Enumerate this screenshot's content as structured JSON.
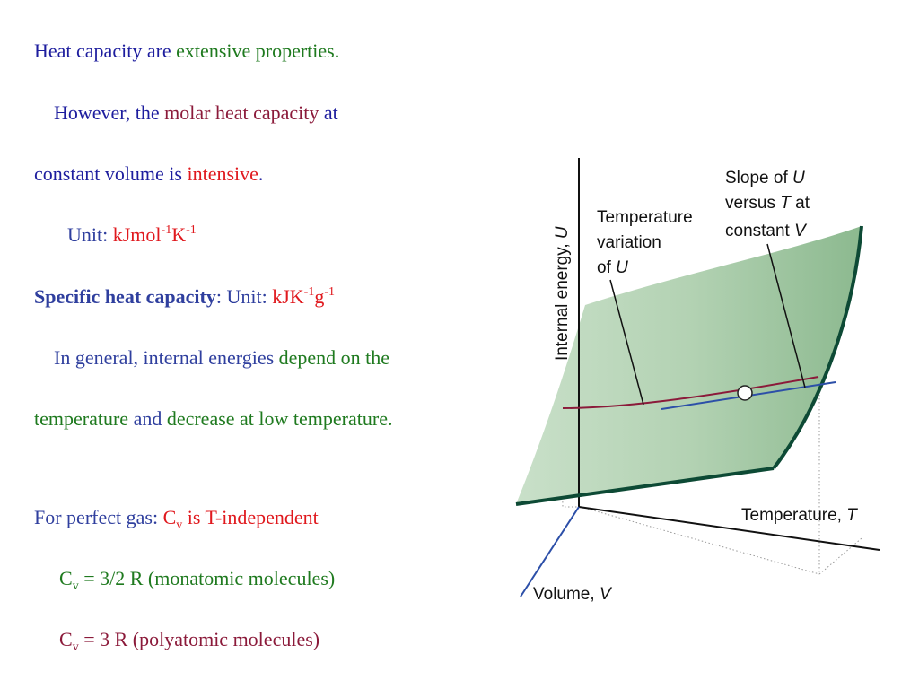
{
  "colors": {
    "blue": "#1d1d9e",
    "green": "#1f7a1f",
    "red": "#e0191e",
    "maroon": "#8b1a3a",
    "surface": "#b9d6b9",
    "edge": "#0d4a35"
  },
  "text": {
    "l1": {
      "a": "Heat capacity are ",
      "b": "extensive properties",
      "c": "."
    },
    "l2": {
      "a": "However, the ",
      "b": "molar heat capacity",
      "c": " at"
    },
    "l3": {
      "a": "constant volume is ",
      "b": "intensive",
      "c": "."
    },
    "l4": {
      "a": "Unit: ",
      "b": "kJmol",
      "b_sup": "-1",
      "c": "K",
      "c_sup": "-1"
    },
    "l5": {
      "a": "Specific heat capacity",
      "b": ":  Unit: ",
      "c": "kJK",
      "c_sup": "-1",
      "d": "g",
      "d_sup": "-1"
    },
    "l6": {
      "a": "In general, internal energies ",
      "b": "depend on the"
    },
    "l7": {
      "a": "temperature",
      "b": " and ",
      "c": "decrease at low temperature",
      "d": "."
    },
    "l8": {
      "a": "For perfect gas: ",
      "b": "C",
      "b_sub": "v",
      "c": " is T-independent"
    },
    "l9": {
      "a": "C",
      "a_sub": "v",
      "b": " = 3/2 R (monatomic molecules)"
    },
    "l10": {
      "a": "C",
      "a_sub": "v",
      "b": " = 3 R (polyatomic molecules)"
    }
  },
  "figure": {
    "y_axis_label": "Internal energy, ",
    "y_axis_label_var": "U",
    "x_axis_label": "Temperature, ",
    "x_axis_label_var": "T",
    "z_axis_label": "Volume, ",
    "z_axis_label_var": "V",
    "annotation_temperature": {
      "line1": "Temperature",
      "line2": "variation",
      "line3": "of ",
      "line3_var": "U"
    },
    "annotation_slope": {
      "line1": "Slope of ",
      "line1_var": "U",
      "line2": "versus ",
      "line2_var": "T",
      "line2_end": " at",
      "line3": "constant ",
      "line3_var": "V"
    }
  }
}
